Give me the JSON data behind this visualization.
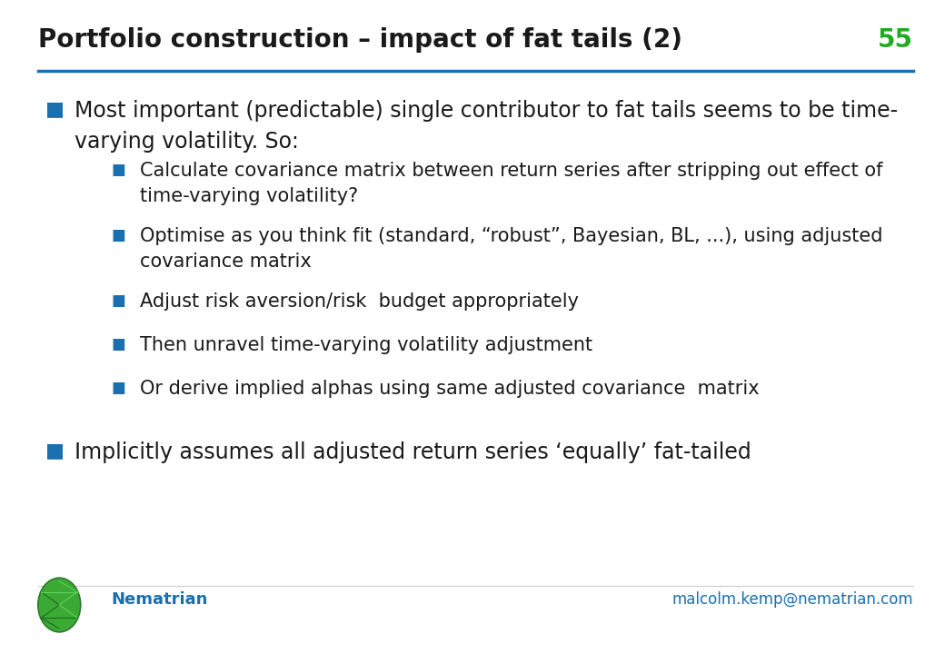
{
  "title": "Portfolio construction – impact of fat tails (2)",
  "slide_number": "55",
  "title_color": "#1a1a1a",
  "title_fontsize": 20,
  "slide_number_color": "#22aa22",
  "line_color": "#1a6faf",
  "background_color": "#ffffff",
  "footer_text": "Nematrian",
  "footer_email": "malcolm.kemp@nematrian.com",
  "footer_color": "#1a6faf",
  "bullet_color": "#1a6faf",
  "main_bullet_fontsize": 17,
  "sub_bullet_fontsize": 15,
  "main_bullets": [
    {
      "text": "Most important (predictable) single contributor to fat tails seems to be time-\nvarying volatility. So:",
      "sub_bullets": [
        "Calculate covariance matrix between return series after stripping out effect of\ntime-varying volatility?",
        "Optimise as you think fit (standard, “robust”, Bayesian, BL, ...), using adjusted\ncovariance matrix",
        "Adjust risk aversion/risk  budget appropriately",
        "Then unravel time-varying volatility adjustment",
        "Or derive implied alphas using same adjusted covariance  matrix"
      ]
    },
    {
      "text": "Implicitly assumes all adjusted return series ‘equally’ fat-tailed",
      "sub_bullets": []
    }
  ]
}
